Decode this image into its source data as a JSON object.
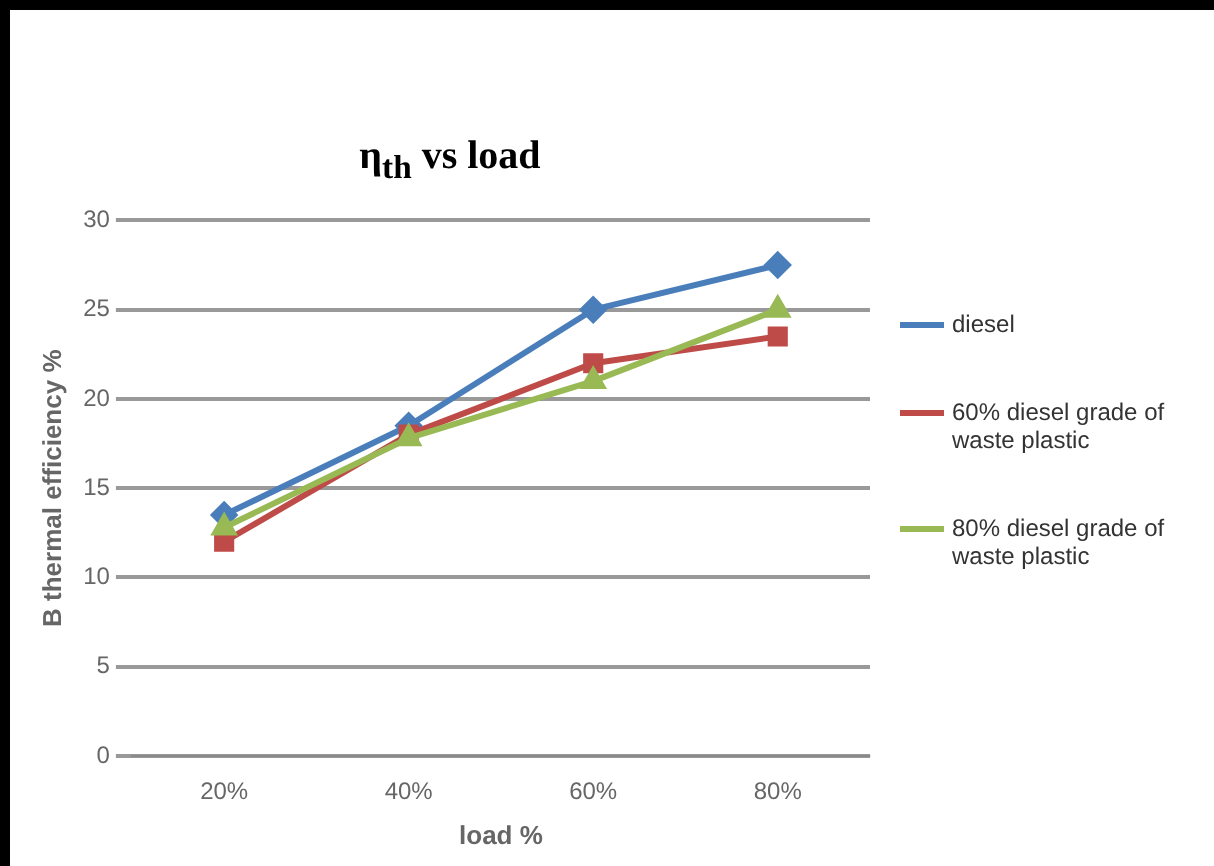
{
  "chart_data": {
    "type": "line",
    "title": "η$_{th}$ vs load",
    "xlabel": "load %",
    "ylabel": "B thermal efficiency %",
    "categories": [
      "20%",
      "40%",
      "60%",
      "80%"
    ],
    "series": [
      {
        "name": "diesel",
        "color": "#4a7ebb",
        "marker": "diamond",
        "values": [
          13.5,
          18.5,
          25,
          27.5
        ]
      },
      {
        "name": "60% diesel grade of waste plastic",
        "color": "#be4b48",
        "marker": "square",
        "values": [
          12,
          18,
          22,
          23.5
        ]
      },
      {
        "name": "80% diesel grade of waste plastic",
        "color": "#98b954",
        "marker": "triangle",
        "values": [
          12.8,
          17.8,
          21,
          25
        ]
      }
    ],
    "ylim": [
      0,
      30
    ],
    "yticks": [
      0,
      5,
      10,
      15,
      20,
      25,
      30
    ],
    "grid": "y",
    "legend": "right"
  }
}
